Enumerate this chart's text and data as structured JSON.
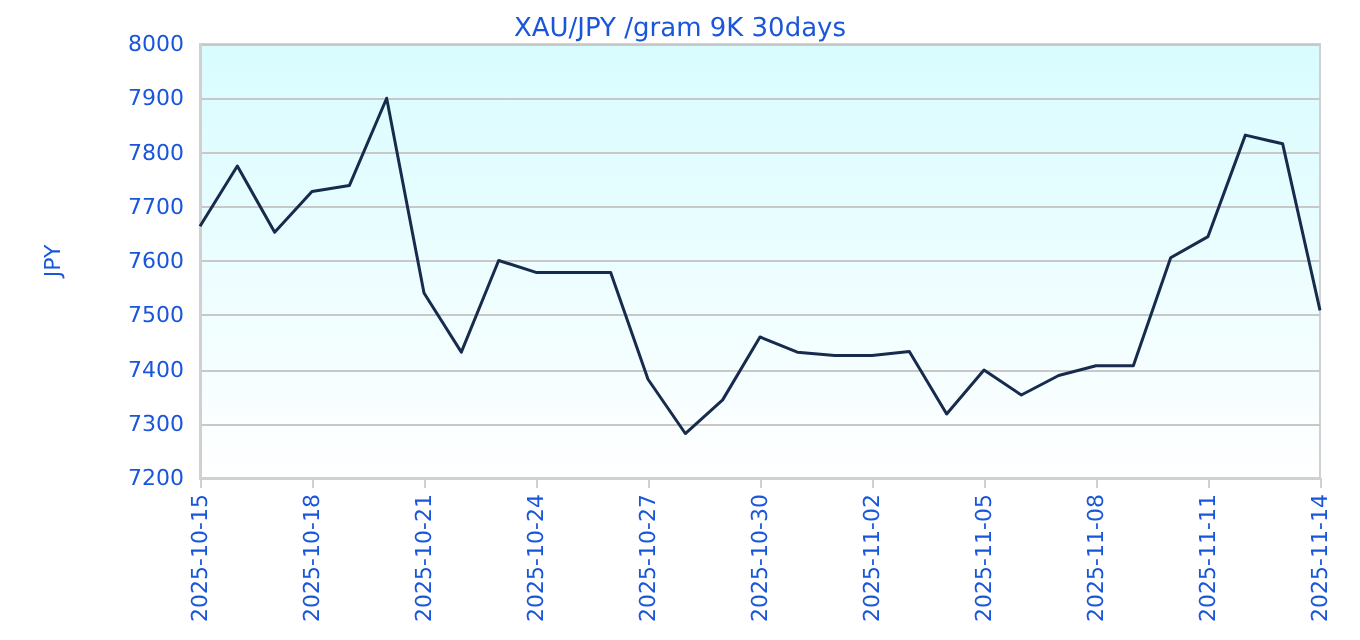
{
  "chart_data": {
    "type": "line",
    "title": "XAU/JPY /gram 9K 30days",
    "ylabel": "JPY",
    "x": [
      "2025-10-15",
      "2025-10-16",
      "2025-10-17",
      "2025-10-18",
      "2025-10-19",
      "2025-10-20",
      "2025-10-21",
      "2025-10-22",
      "2025-10-23",
      "2025-10-24",
      "2025-10-25",
      "2025-10-26",
      "2025-10-27",
      "2025-10-28",
      "2025-10-29",
      "2025-10-30",
      "2025-10-31",
      "2025-11-01",
      "2025-11-02",
      "2025-11-03",
      "2025-11-04",
      "2025-11-05",
      "2025-11-06",
      "2025-11-07",
      "2025-11-08",
      "2025-11-09",
      "2025-11-10",
      "2025-11-11",
      "2025-11-12",
      "2025-11-13",
      "2025-11-14"
    ],
    "series": [
      {
        "color": "#172b4d",
        "values": [
          7664,
          7775,
          7653,
          7728,
          7739,
          7900,
          7541,
          7432,
          7601,
          7579,
          7579,
          7579,
          7382,
          7282,
          7344,
          7460,
          7432,
          7426,
          7426,
          7433,
          7318,
          7399,
          7353,
          7389,
          7407,
          7407,
          7606,
          7645,
          7832,
          7816,
          7509
        ]
      }
    ],
    "xlim": [
      "2025-10-15",
      "2025-11-14"
    ],
    "xticks": [
      "2025-10-15",
      "2025-10-18",
      "2025-10-21",
      "2025-10-24",
      "2025-10-27",
      "2025-10-30",
      "2025-11-02",
      "2025-11-05",
      "2025-11-08",
      "2025-11-11",
      "2025-11-14"
    ],
    "ylim": [
      7200,
      8000
    ],
    "yticks": [
      7200,
      7300,
      7400,
      7500,
      7600,
      7700,
      7800,
      7900,
      8000
    ],
    "grid": "y",
    "marker": "none",
    "line_style": "solid"
  }
}
